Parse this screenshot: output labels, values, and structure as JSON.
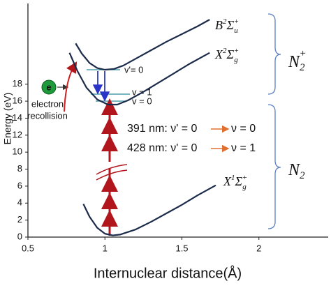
{
  "chart_data": {
    "type": "line",
    "x_label": "Internuclear distance(Å)",
    "y_label": "Energy (eV)",
    "xlim": [
      0.5,
      2.45
    ],
    "ylim": [
      0,
      27.5
    ],
    "xticks": [
      0.5,
      1,
      1.5,
      2
    ],
    "yticks": [
      0,
      2,
      4,
      6,
      8,
      10,
      12,
      14,
      16,
      18
    ],
    "series": [
      {
        "color": "#1c2b4a",
        "x": [
          0.86,
          0.9,
          0.95,
          1.0,
          1.05,
          1.1,
          1.2,
          1.3,
          1.4,
          1.5,
          1.6,
          1.72
        ],
        "values": [
          3.9,
          2.4,
          1.1,
          0.4,
          0.2,
          0.3,
          0.9,
          1.8,
          2.8,
          3.8,
          4.9,
          6.1
        ]
      },
      {
        "color": "#1c2b4a",
        "x": [
          0.77,
          0.82,
          0.88,
          0.95,
          1.02,
          1.08,
          1.15,
          1.25,
          1.35,
          1.45,
          1.55,
          1.68
        ],
        "values": [
          21.7,
          19.6,
          17.6,
          16.2,
          15.6,
          15.6,
          16.1,
          17.1,
          18.2,
          19.3,
          20.4,
          21.7
        ]
      },
      {
        "color": "#1c2b4a",
        "x": [
          0.81,
          0.85,
          0.9,
          0.95,
          1.0,
          1.06,
          1.12,
          1.2,
          1.3,
          1.4,
          1.5,
          1.6,
          1.68
        ],
        "values": [
          22.8,
          21.6,
          20.5,
          19.9,
          19.7,
          19.8,
          20.2,
          21.0,
          22.0,
          23.0,
          23.9,
          24.8,
          25.6
        ]
      }
    ],
    "state_labels": [
      {
        "letter": "B",
        "multiplicity": "2",
        "term": "Σ",
        "sub": "u",
        "sup": "+"
      },
      {
        "letter": "X",
        "multiplicity": "2",
        "term": "Σ",
        "sub": "g",
        "sup": "+"
      },
      {
        "letter": "X",
        "multiplicity": "1",
        "term": "Σ",
        "sub": "g",
        "sup": "+"
      }
    ],
    "ion_label": {
      "letter": "N",
      "sub": "2",
      "sup": "+"
    },
    "neutral_label": {
      "letter": "N",
      "sub": "2"
    },
    "levels": [
      "v'= 0",
      "v = 1",
      "v = 0"
    ],
    "electron": {
      "symbol": "e",
      "line1": "electron",
      "line2": "recollision"
    },
    "transitions": [
      {
        "wavelength": "391 nm:",
        "upper": "ν' = 0",
        "lower": "ν = 0"
      },
      {
        "wavelength": "428 nm:",
        "upper": "ν' = 0",
        "lower": "ν = 1"
      }
    ]
  }
}
